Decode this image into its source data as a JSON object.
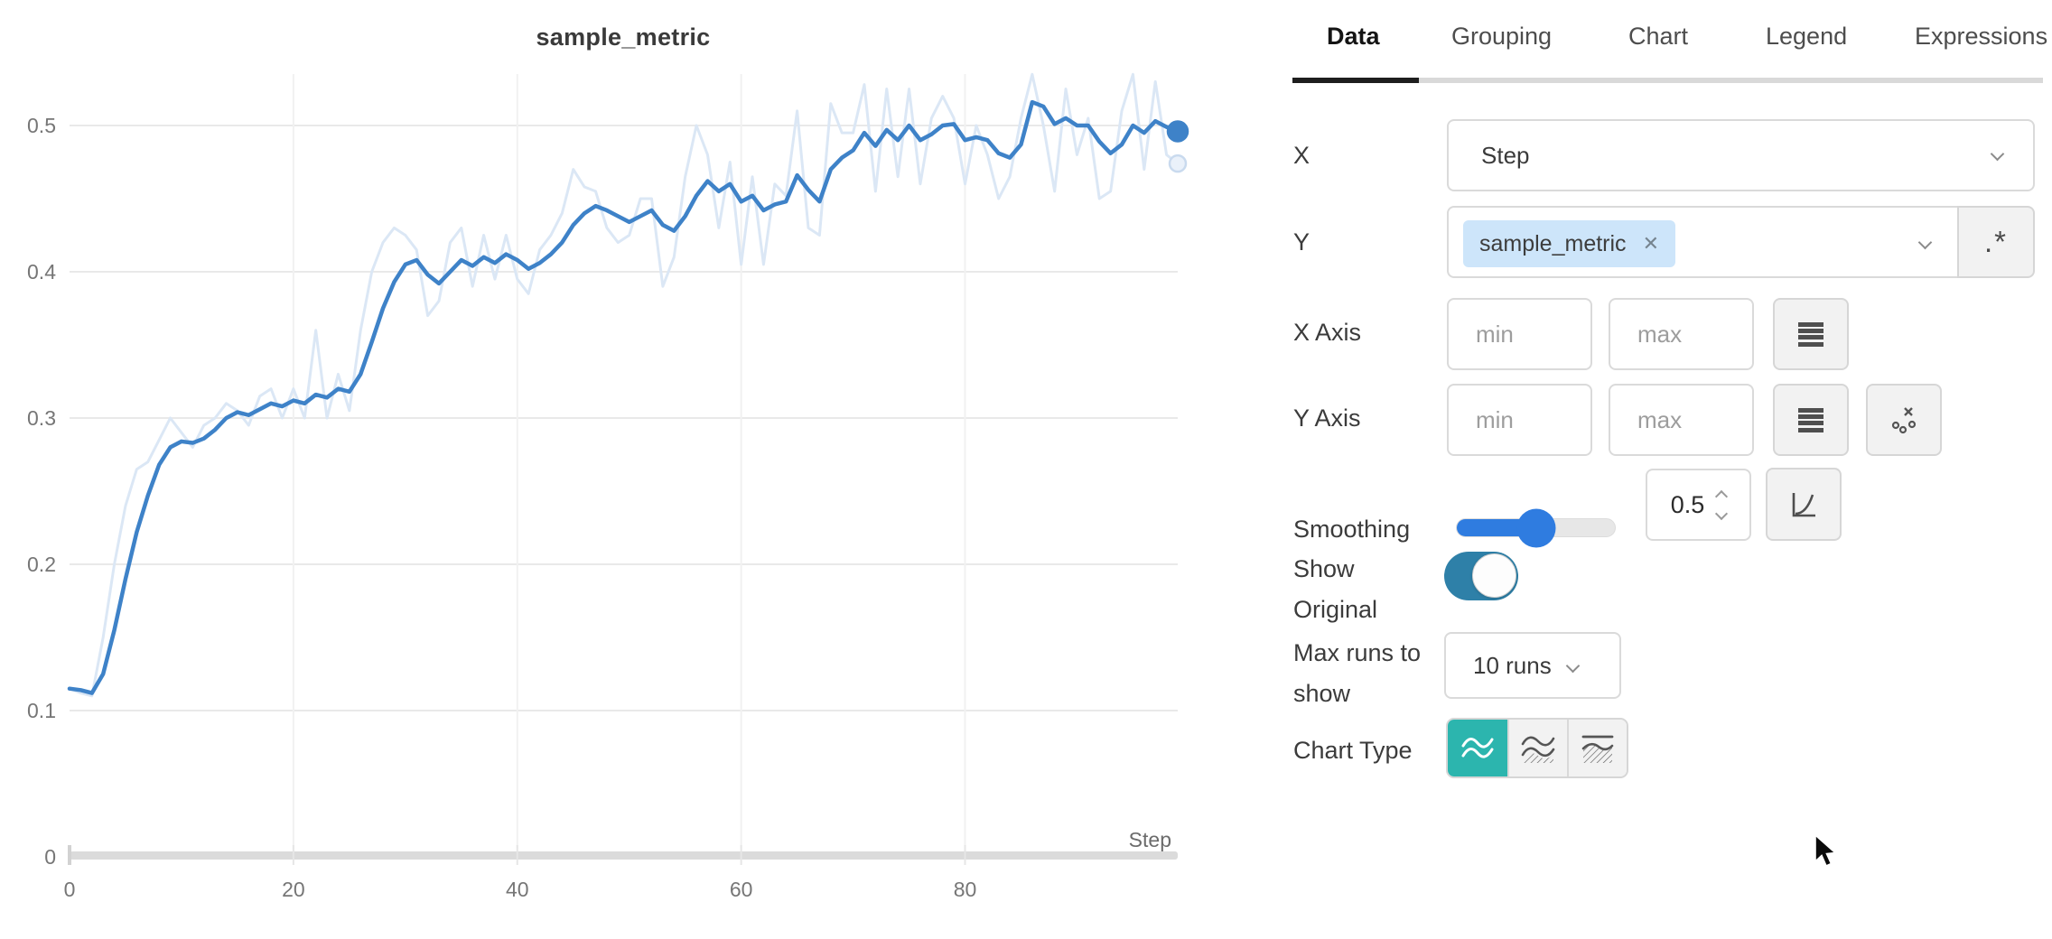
{
  "chart": {
    "title": "sample_metric"
  },
  "chart_data": {
    "type": "line",
    "title": "sample_metric",
    "xlabel": "Step",
    "ylabel": "",
    "x_range": [
      0,
      99
    ],
    "ylim": [
      0,
      0.54
    ],
    "grid": true,
    "legend": "none",
    "x_ticks": [
      "0",
      "20",
      "40",
      "60",
      "80"
    ],
    "y_ticks": [
      "0.5",
      "0.4",
      "0.3",
      "0.2",
      "0.1",
      "0"
    ],
    "series": [
      {
        "name": "sample_metric (original)",
        "color": "#dbe7f5",
        "end_dot_fill": "#eaf1fa",
        "end_dot_stroke": "#c9daee",
        "values": [
          0.115,
          0.112,
          0.11,
          0.15,
          0.2,
          0.24,
          0.265,
          0.27,
          0.285,
          0.3,
          0.29,
          0.28,
          0.295,
          0.3,
          0.31,
          0.305,
          0.295,
          0.315,
          0.32,
          0.3,
          0.32,
          0.3,
          0.36,
          0.3,
          0.33,
          0.305,
          0.36,
          0.4,
          0.42,
          0.43,
          0.425,
          0.415,
          0.37,
          0.38,
          0.42,
          0.43,
          0.39,
          0.425,
          0.395,
          0.425,
          0.395,
          0.385,
          0.415,
          0.425,
          0.44,
          0.47,
          0.458,
          0.455,
          0.43,
          0.42,
          0.425,
          0.45,
          0.45,
          0.39,
          0.41,
          0.465,
          0.5,
          0.48,
          0.43,
          0.475,
          0.405,
          0.465,
          0.405,
          0.46,
          0.452,
          0.51,
          0.43,
          0.425,
          0.515,
          0.495,
          0.495,
          0.528,
          0.455,
          0.525,
          0.465,
          0.525,
          0.46,
          0.505,
          0.52,
          0.505,
          0.46,
          0.5,
          0.48,
          0.45,
          0.465,
          0.505,
          0.535,
          0.5,
          0.455,
          0.525,
          0.48,
          0.505,
          0.45,
          0.455,
          0.51,
          0.535,
          0.47,
          0.53,
          0.48,
          0.474
        ]
      },
      {
        "name": "sample_metric (smoothed 0.5)",
        "color": "#3e82c8",
        "end_dot_fill": "#3e82c8",
        "end_dot_stroke": "#3e82c8",
        "values": [
          0.115,
          0.114,
          0.112,
          0.125,
          0.155,
          0.19,
          0.222,
          0.247,
          0.268,
          0.28,
          0.284,
          0.283,
          0.286,
          0.292,
          0.3,
          0.304,
          0.302,
          0.306,
          0.31,
          0.308,
          0.312,
          0.31,
          0.316,
          0.314,
          0.32,
          0.318,
          0.33,
          0.352,
          0.375,
          0.393,
          0.405,
          0.408,
          0.398,
          0.392,
          0.4,
          0.408,
          0.404,
          0.41,
          0.406,
          0.412,
          0.408,
          0.402,
          0.406,
          0.412,
          0.42,
          0.432,
          0.44,
          0.445,
          0.442,
          0.438,
          0.434,
          0.438,
          0.442,
          0.432,
          0.428,
          0.438,
          0.452,
          0.462,
          0.455,
          0.46,
          0.448,
          0.452,
          0.442,
          0.446,
          0.448,
          0.466,
          0.456,
          0.448,
          0.47,
          0.478,
          0.483,
          0.495,
          0.486,
          0.497,
          0.49,
          0.5,
          0.49,
          0.494,
          0.5,
          0.501,
          0.49,
          0.492,
          0.49,
          0.481,
          0.478,
          0.487,
          0.516,
          0.513,
          0.501,
          0.505,
          0.5,
          0.5,
          0.489,
          0.481,
          0.487,
          0.5,
          0.495,
          0.503,
          0.499,
          0.496
        ]
      }
    ]
  },
  "panel": {
    "tabs": [
      {
        "label": "Data",
        "active": true
      },
      {
        "label": "Grouping",
        "active": false
      },
      {
        "label": "Chart",
        "active": false
      },
      {
        "label": "Legend",
        "active": false
      },
      {
        "label": "Expressions",
        "active": false
      }
    ],
    "x_field": {
      "label": "X",
      "value": "Step"
    },
    "y_field": {
      "label": "Y",
      "chip": "sample_metric",
      "chip_close": "✕",
      "regex_button": ".*"
    },
    "x_axis": {
      "label": "X Axis",
      "min_placeholder": "min",
      "max_placeholder": "max"
    },
    "y_axis": {
      "label": "Y Axis",
      "min_placeholder": "min",
      "max_placeholder": "max"
    },
    "smoothing": {
      "label": "Smoothing",
      "value": "0.5",
      "slider_percent": 50
    },
    "show_original": {
      "label": "Show Original",
      "on": true
    },
    "max_runs": {
      "label": "Max runs to show",
      "value": "10 runs"
    },
    "chart_type": {
      "label": "Chart Type",
      "selected_index": 0
    },
    "colors": {
      "accent_teal": "#2cb5ae",
      "toggle_blue": "#2e80a8",
      "slider_blue": "#2f7ce0",
      "line_blue": "#3e82c8",
      "chip_blue": "#cde5fa"
    }
  }
}
